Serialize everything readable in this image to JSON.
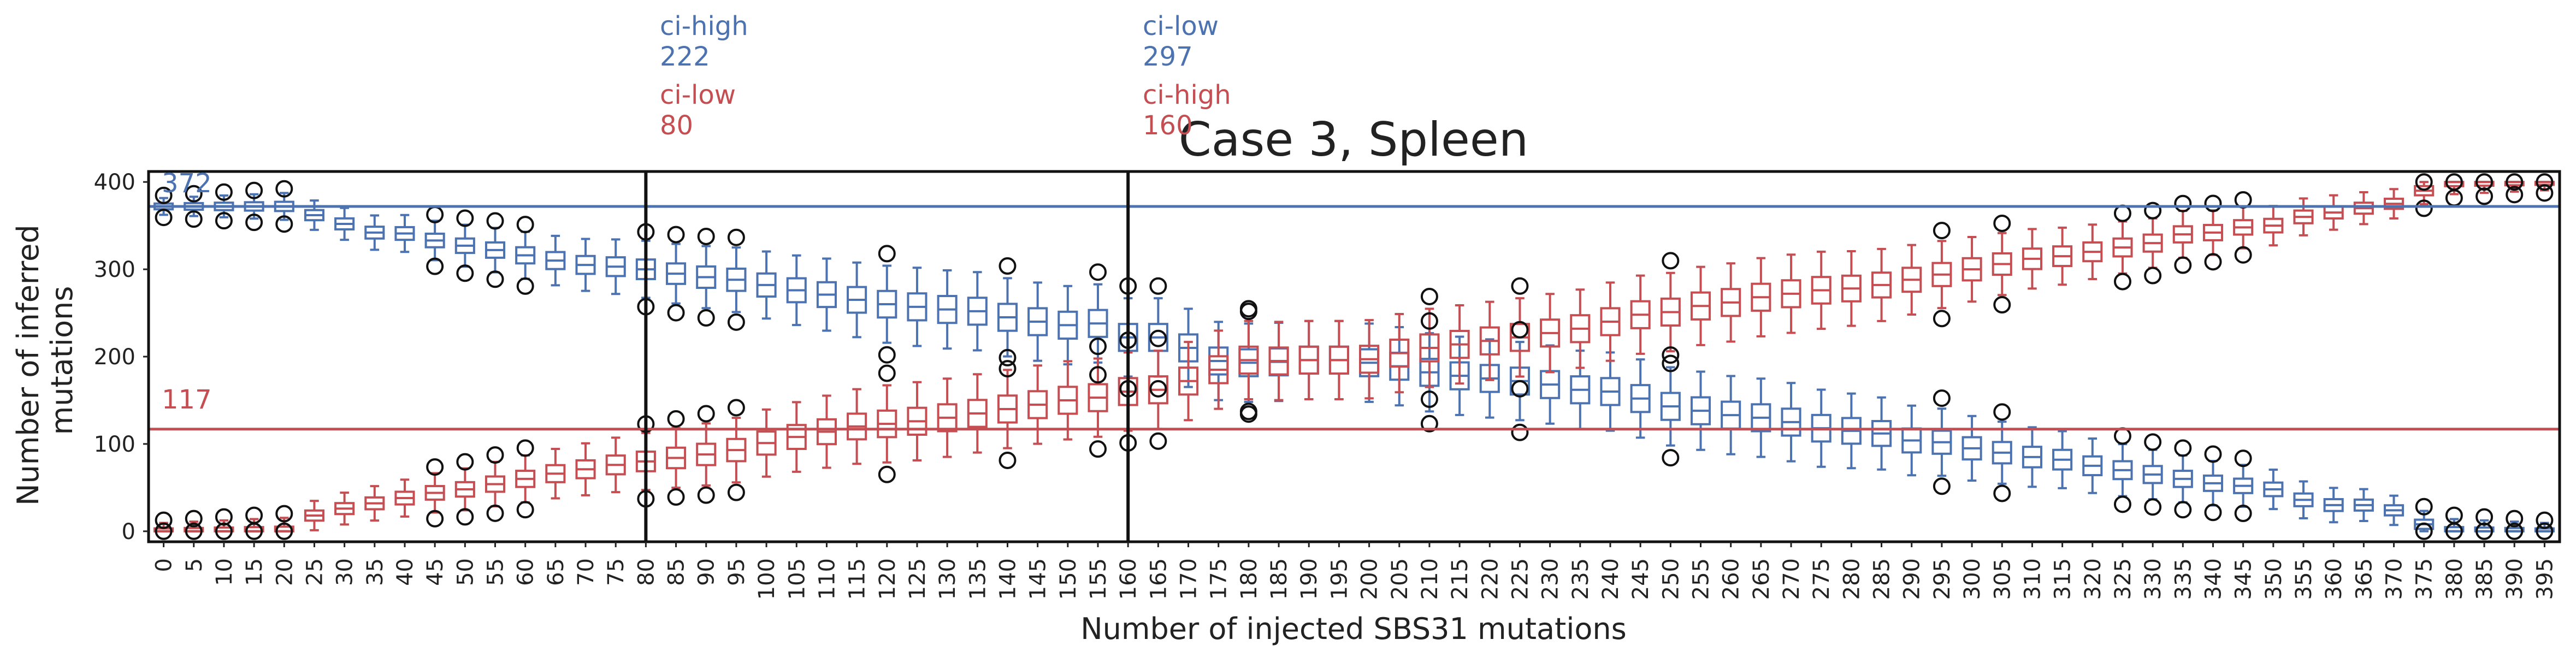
{
  "chart_data": {
    "type": "box",
    "title": "Case 3, Spleen",
    "xlabel": "Number of injected SBS31 mutations",
    "ylabel_lines": [
      "Number of inferred",
      "mutations"
    ],
    "ylim": [
      -12,
      412
    ],
    "yticks": [
      0,
      100,
      200,
      300,
      400
    ],
    "colors": {
      "blue": "#4c72b0",
      "red": "#c44e52",
      "outlier": "#111111",
      "frame": "#111111"
    },
    "categories": [
      "0",
      "5",
      "10",
      "15",
      "20",
      "25",
      "30",
      "35",
      "40",
      "45",
      "50",
      "55",
      "60",
      "65",
      "70",
      "75",
      "80",
      "85",
      "90",
      "95",
      "100",
      "105",
      "110",
      "115",
      "120",
      "125",
      "130",
      "135",
      "140",
      "145",
      "150",
      "155",
      "160",
      "165",
      "170",
      "175",
      "180",
      "185",
      "190",
      "195",
      "200",
      "205",
      "210",
      "215",
      "220",
      "225",
      "230",
      "235",
      "240",
      "245",
      "250",
      "255",
      "260",
      "265",
      "270",
      "275",
      "280",
      "285",
      "290",
      "295",
      "300",
      "305",
      "310",
      "315",
      "320",
      "325",
      "330",
      "335",
      "340",
      "345",
      "350",
      "355",
      "360",
      "365",
      "370",
      "375",
      "380",
      "385",
      "390",
      "395"
    ],
    "series": [
      {
        "color": "blue",
        "median": [
          372,
          372,
          372,
          372,
          372,
          362,
          352,
          342,
          341,
          333,
          327,
          322,
          316,
          310,
          305,
          303,
          300,
          295,
          291,
          288,
          282,
          276,
          271,
          265,
          260,
          257,
          254,
          252,
          245,
          240,
          236,
          238,
          222,
          222,
          210,
          195,
          193,
          194,
          196,
          196,
          193,
          189,
          182,
          178,
          175,
          172,
          168,
          162,
          160,
          152,
          143,
          138,
          133,
          130,
          125,
          118,
          115,
          112,
          104,
          102,
          95,
          90,
          85,
          82,
          75,
          70,
          65,
          60,
          55,
          52,
          48,
          36,
          30,
          30,
          24,
          8,
          0,
          0,
          0,
          0
        ]
      },
      {
        "color": "red",
        "median": [
          0,
          0,
          0,
          0,
          0,
          18,
          26,
          32,
          38,
          44,
          48,
          54,
          60,
          66,
          71,
          76,
          80,
          84,
          88,
          93,
          101,
          108,
          114,
          120,
          123,
          126,
          130,
          135,
          140,
          145,
          150,
          153,
          160,
          162,
          172,
          185,
          196,
          195,
          196,
          196,
          197,
          204,
          210,
          214,
          218,
          222,
          227,
          232,
          240,
          248,
          251,
          258,
          262,
          268,
          272,
          276,
          278,
          282,
          288,
          294,
          300,
          306,
          312,
          315,
          320,
          325,
          330,
          340,
          342,
          348,
          350,
          360,
          365,
          370,
          375,
          390,
          400,
          400,
          400,
          400
        ]
      }
    ],
    "reference_lines": [
      {
        "color": "blue",
        "y": 372,
        "label": "372"
      },
      {
        "color": "red",
        "y": 117,
        "label": "117"
      }
    ],
    "vertical_lines": [
      {
        "x": "80",
        "labels": [
          {
            "color": "blue",
            "name": "ci-high",
            "value": "222"
          },
          {
            "color": "red",
            "name": "ci-low",
            "value": "80"
          }
        ]
      },
      {
        "x": "160",
        "labels": [
          {
            "color": "blue",
            "name": "ci-low",
            "value": "297"
          },
          {
            "color": "red",
            "name": "ci-high",
            "value": "160"
          }
        ]
      }
    ]
  }
}
